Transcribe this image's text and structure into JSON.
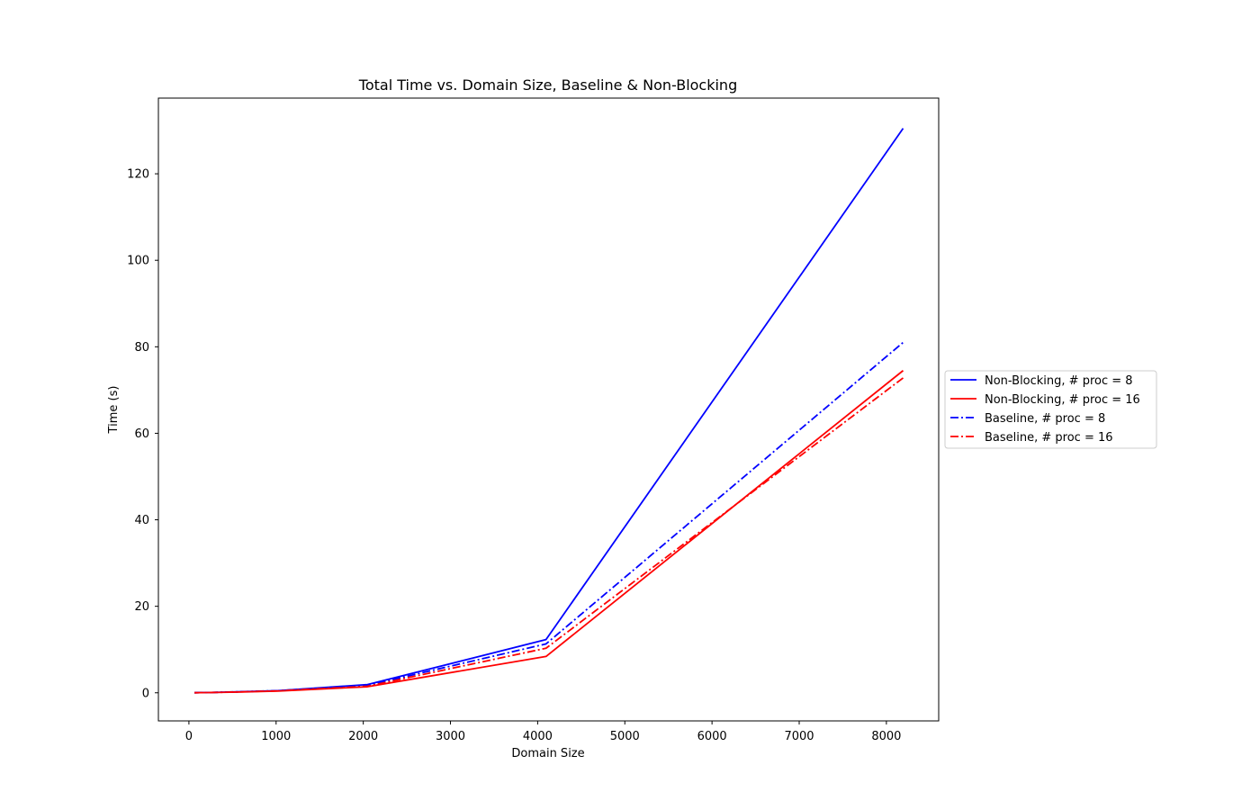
{
  "chart_data": {
    "type": "line",
    "title": "Total Time vs. Domain Size, Baseline & Non-Blocking",
    "xlabel": "Domain Size",
    "ylabel": "Time (s)",
    "xlim": [
      -350,
      8600
    ],
    "ylim": [
      -6.5,
      137.5
    ],
    "xticks": [
      0,
      1000,
      2000,
      3000,
      4000,
      5000,
      6000,
      7000,
      8000
    ],
    "yticks": [
      0,
      20,
      40,
      60,
      80,
      100,
      120
    ],
    "grid": false,
    "legend_position": "right-outside",
    "x": [
      64,
      128,
      256,
      512,
      1024,
      2048,
      4096,
      8192
    ],
    "series": [
      {
        "name": "Non-Blocking, # proc = 8",
        "color": "#0000ff",
        "linestyle": "solid",
        "values": [
          0.02,
          0.04,
          0.08,
          0.2,
          0.5,
          1.9,
          12.3,
          130.5
        ]
      },
      {
        "name": "Non-Blocking, # proc = 16",
        "color": "#ff0000",
        "linestyle": "solid",
        "values": [
          0.02,
          0.03,
          0.06,
          0.15,
          0.4,
          1.4,
          8.4,
          74.5
        ]
      },
      {
        "name": "Baseline, # proc = 8",
        "color": "#0000ff",
        "linestyle": "dashdot",
        "values": [
          0.02,
          0.04,
          0.08,
          0.2,
          0.5,
          1.7,
          11.3,
          81.0
        ]
      },
      {
        "name": "Baseline, # proc = 16",
        "color": "#ff0000",
        "linestyle": "dashdot",
        "values": [
          0.02,
          0.03,
          0.07,
          0.17,
          0.45,
          1.5,
          10.3,
          72.8
        ]
      }
    ]
  }
}
